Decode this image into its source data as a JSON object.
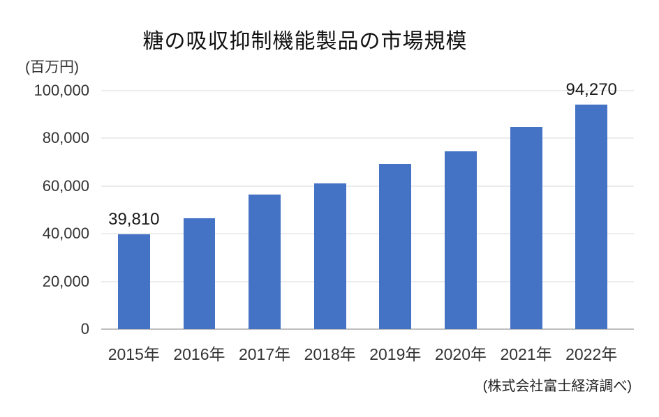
{
  "chart": {
    "title": "糖の吸収抑制機能製品の市場規模",
    "unit_label": "(百万円)",
    "source": "(株式会社富士経済調べ)"
  },
  "chart_data": {
    "type": "bar",
    "title": "糖の吸収抑制機能製品の市場規模",
    "categories": [
      "2015年",
      "2016年",
      "2017年",
      "2018年",
      "2019年",
      "2020年",
      "2021年",
      "2022年"
    ],
    "values": [
      39810,
      46500,
      56300,
      61000,
      69200,
      74700,
      84800,
      94270
    ],
    "data_labels": [
      "39,810",
      null,
      null,
      null,
      null,
      null,
      null,
      "94,270"
    ],
    "xlabel": "",
    "ylabel": "(百万円)",
    "ylim": [
      0,
      100000
    ],
    "yticks": [
      0,
      20000,
      40000,
      60000,
      80000,
      100000
    ],
    "ytick_labels": [
      "0",
      "20,000",
      "40,000",
      "60,000",
      "80,000",
      "100,000"
    ],
    "grid": "horizontal",
    "legend": false,
    "bar_color": "#4472C4",
    "gridline_color": "#D9D9D9",
    "axis_line_color": "#BFBFBF",
    "source": "(株式会社富士経済調べ)"
  }
}
